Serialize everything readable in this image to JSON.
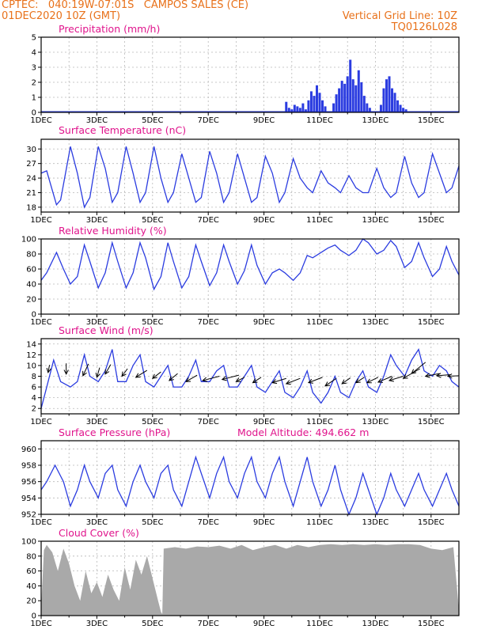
{
  "header": {
    "line1": "CPTEC:   040:19W-07:01S   CAMPOS SALES (CE)",
    "line2": "01DEC2020 10Z (GMT)",
    "grid_note": "Vertical Grid Line: 10Z",
    "code": "TQ0126L028"
  },
  "colors": {
    "header": "#e8711a",
    "title": "#e0148c",
    "line": "#2b3ce0",
    "cloud": "#a9a9a9",
    "wind": "#000000"
  },
  "x_ticks": [
    "1DEC",
    "3DEC",
    "5DEC",
    "7DEC",
    "9DEC",
    "11DEC",
    "13DEC",
    "15DEC"
  ],
  "chart_data": [
    {
      "type": "bar",
      "title": "Precipitation (mm/h)",
      "x_range": [
        0,
        15.0
      ],
      "ylim": [
        0,
        5
      ],
      "yticks": [
        0,
        1,
        2,
        3,
        4,
        5
      ],
      "x_unit_note": "days since 1DEC 00Z",
      "bars": [
        [
          8.8,
          0.7
        ],
        [
          8.9,
          0.3
        ],
        [
          9.0,
          0.2
        ],
        [
          9.1,
          0.5
        ],
        [
          9.2,
          0.4
        ],
        [
          9.3,
          0.3
        ],
        [
          9.4,
          0.6
        ],
        [
          9.5,
          0.2
        ],
        [
          9.6,
          0.8
        ],
        [
          9.7,
          1.4
        ],
        [
          9.8,
          1.1
        ],
        [
          9.9,
          1.8
        ],
        [
          10.0,
          1.3
        ],
        [
          10.1,
          0.8
        ],
        [
          10.2,
          0.4
        ],
        [
          10.5,
          0.6
        ],
        [
          10.6,
          1.2
        ],
        [
          10.7,
          1.6
        ],
        [
          10.8,
          2.1
        ],
        [
          10.9,
          1.9
        ],
        [
          11.0,
          2.4
        ],
        [
          11.1,
          3.5
        ],
        [
          11.2,
          2.2
        ],
        [
          11.3,
          1.8
        ],
        [
          11.4,
          2.8
        ],
        [
          11.5,
          2.0
        ],
        [
          11.6,
          1.1
        ],
        [
          11.7,
          0.6
        ],
        [
          11.8,
          0.3
        ],
        [
          12.2,
          0.5
        ],
        [
          12.3,
          1.6
        ],
        [
          12.4,
          2.2
        ],
        [
          12.5,
          2.4
        ],
        [
          12.6,
          1.6
        ],
        [
          12.7,
          1.3
        ],
        [
          12.8,
          0.8
        ],
        [
          12.9,
          0.5
        ],
        [
          13.0,
          0.3
        ],
        [
          13.1,
          0.2
        ]
      ]
    },
    {
      "type": "line",
      "title": "Surface Temperature (nC)",
      "ylim": [
        17,
        32
      ],
      "yticks": [
        18,
        21,
        24,
        27,
        30
      ],
      "x": [
        0,
        0.2,
        0.55,
        0.7,
        1.05,
        1.3,
        1.55,
        1.75,
        2.05,
        2.3,
        2.55,
        2.75,
        3.05,
        3.3,
        3.55,
        3.75,
        4.05,
        4.3,
        4.55,
        4.75,
        5.05,
        5.3,
        5.55,
        5.75,
        6.05,
        6.3,
        6.55,
        6.75,
        7.05,
        7.3,
        7.55,
        7.75,
        8.05,
        8.3,
        8.55,
        8.75,
        9.05,
        9.3,
        9.55,
        9.75,
        10.05,
        10.3,
        10.55,
        10.75,
        11.05,
        11.3,
        11.55,
        11.75,
        12.05,
        12.3,
        12.55,
        12.75,
        13.05,
        13.3,
        13.55,
        13.75,
        14.05,
        14.3,
        14.55,
        14.75,
        15.0
      ],
      "values": [
        25,
        25.5,
        18.5,
        19.5,
        30.5,
        25,
        18,
        20,
        30.5,
        26,
        19,
        21,
        30.5,
        25,
        19,
        21,
        30.5,
        24,
        19,
        21,
        29,
        24,
        19,
        20,
        29.5,
        25,
        19,
        21,
        29,
        24,
        19,
        20,
        28.5,
        25,
        19,
        21,
        28,
        24,
        22,
        21,
        25.5,
        23,
        22,
        21,
        24.5,
        22,
        21,
        21,
        26,
        22,
        20,
        21,
        28.5,
        23,
        20,
        21,
        29,
        25,
        21,
        22,
        26.5
      ]
    },
    {
      "type": "line",
      "title": "Relative Humidity (%)",
      "ylim": [
        0,
        100
      ],
      "yticks": [
        0,
        20,
        40,
        60,
        80,
        100
      ],
      "x": [
        0,
        0.2,
        0.55,
        0.8,
        1.05,
        1.3,
        1.55,
        1.75,
        2.05,
        2.3,
        2.55,
        2.75,
        3.05,
        3.3,
        3.55,
        3.75,
        4.05,
        4.3,
        4.55,
        4.75,
        5.05,
        5.3,
        5.55,
        5.75,
        6.05,
        6.3,
        6.55,
        6.75,
        7.05,
        7.3,
        7.55,
        7.75,
        8.05,
        8.3,
        8.55,
        8.75,
        9.05,
        9.3,
        9.55,
        9.75,
        10.05,
        10.3,
        10.55,
        10.75,
        11.05,
        11.3,
        11.55,
        11.75,
        12.05,
        12.3,
        12.55,
        12.75,
        13.05,
        13.3,
        13.55,
        13.75,
        14.05,
        14.3,
        14.55,
        14.75,
        15.0
      ],
      "values": [
        45,
        55,
        82,
        60,
        40,
        50,
        92,
        70,
        35,
        55,
        95,
        70,
        35,
        55,
        95,
        75,
        33,
        50,
        95,
        70,
        35,
        50,
        92,
        70,
        38,
        55,
        92,
        70,
        40,
        58,
        92,
        65,
        40,
        55,
        60,
        55,
        45,
        55,
        78,
        75,
        82,
        88,
        92,
        85,
        78,
        85,
        100,
        95,
        80,
        85,
        98,
        90,
        62,
        70,
        95,
        75,
        50,
        60,
        90,
        70,
        52
      ]
    },
    {
      "type": "line",
      "title": "Surface Wind (m/s)",
      "ylim": [
        1,
        15
      ],
      "yticks": [
        2,
        4,
        6,
        8,
        10,
        12,
        14
      ],
      "x": [
        0,
        0.15,
        0.45,
        0.7,
        1.05,
        1.3,
        1.55,
        1.75,
        2.05,
        2.3,
        2.55,
        2.75,
        3.05,
        3.3,
        3.55,
        3.75,
        4.05,
        4.3,
        4.55,
        4.75,
        5.05,
        5.3,
        5.55,
        5.75,
        6.05,
        6.3,
        6.55,
        6.75,
        7.05,
        7.3,
        7.55,
        7.75,
        8.05,
        8.3,
        8.55,
        8.75,
        9.05,
        9.3,
        9.55,
        9.75,
        10.05,
        10.3,
        10.55,
        10.75,
        11.05,
        11.3,
        11.55,
        11.75,
        12.05,
        12.3,
        12.55,
        12.75,
        13.05,
        13.3,
        13.55,
        13.75,
        14.05,
        14.3,
        14.55,
        14.75,
        15.0
      ],
      "values": [
        2,
        5,
        11,
        7,
        6,
        7,
        12,
        8,
        7,
        9,
        13,
        7,
        7,
        10,
        12,
        7,
        6,
        8,
        10,
        6,
        6,
        8,
        11,
        7,
        7,
        9,
        10,
        6,
        6,
        8,
        10,
        6,
        5,
        7,
        9,
        5,
        4,
        6,
        9,
        5,
        3,
        5,
        8,
        5,
        4,
        7,
        9,
        6,
        5,
        8,
        12,
        10,
        8,
        11,
        13,
        9,
        8,
        10,
        9,
        7,
        6
      ],
      "vectors": [
        [
          0.25,
          8.7,
          0.3,
          10.1
        ],
        [
          0.9,
          8.4,
          0.9,
          10.4
        ],
        [
          1.5,
          8.1,
          1.7,
          10.3
        ],
        [
          2.0,
          7.8,
          2.1,
          9.6
        ],
        [
          2.3,
          8.4,
          2.5,
          10.2
        ],
        [
          2.9,
          8.0,
          3.1,
          9.4
        ],
        [
          3.4,
          7.8,
          3.8,
          9.1
        ],
        [
          4.0,
          7.6,
          4.3,
          8.8
        ],
        [
          4.6,
          7.2,
          4.9,
          8.5
        ],
        [
          5.2,
          7.0,
          5.6,
          8.2
        ],
        [
          5.8,
          7.2,
          6.4,
          8.0
        ],
        [
          6.5,
          7.4,
          7.1,
          8.2
        ],
        [
          7.0,
          7.0,
          7.3,
          7.8
        ],
        [
          7.6,
          6.8,
          7.9,
          7.8
        ],
        [
          8.3,
          6.8,
          8.8,
          7.6
        ],
        [
          8.8,
          6.6,
          9.3,
          7.6
        ],
        [
          9.6,
          6.8,
          10.1,
          7.8
        ],
        [
          10.2,
          6.2,
          10.6,
          7.6
        ],
        [
          10.8,
          6.6,
          11.1,
          7.7
        ],
        [
          11.3,
          6.8,
          11.6,
          7.8
        ],
        [
          11.7,
          6.8,
          12.1,
          7.8
        ],
        [
          12.1,
          6.9,
          12.6,
          8.0
        ],
        [
          12.5,
          7.2,
          13.0,
          8.0
        ],
        [
          13.0,
          7.6,
          13.6,
          9.4
        ],
        [
          13.3,
          8.5,
          13.8,
          10.6
        ],
        [
          13.8,
          8.0,
          14.3,
          8.5
        ],
        [
          14.2,
          8.1,
          14.7,
          8.3
        ],
        [
          14.6,
          8.0,
          15.0,
          8.1
        ]
      ]
    },
    {
      "type": "line",
      "title": "Surface Pressure (hPa)",
      "annotation": "Model Altitude: 494.662  m",
      "ylim": [
        952,
        961
      ],
      "yticks": [
        952,
        954,
        956,
        958,
        960
      ],
      "x": [
        0,
        0.2,
        0.5,
        0.8,
        1.05,
        1.3,
        1.55,
        1.75,
        2.05,
        2.3,
        2.55,
        2.75,
        3.05,
        3.3,
        3.55,
        3.75,
        4.05,
        4.3,
        4.55,
        4.75,
        5.05,
        5.3,
        5.55,
        5.75,
        6.05,
        6.3,
        6.55,
        6.75,
        7.05,
        7.3,
        7.55,
        7.75,
        8.05,
        8.3,
        8.55,
        8.75,
        9.05,
        9.3,
        9.55,
        9.75,
        10.05,
        10.3,
        10.55,
        10.75,
        11.05,
        11.3,
        11.55,
        11.75,
        12.05,
        12.3,
        12.55,
        12.75,
        13.05,
        13.3,
        13.55,
        13.75,
        14.05,
        14.3,
        14.55,
        14.75,
        15.0
      ],
      "values": [
        955,
        956,
        958,
        956,
        953,
        955,
        958,
        956,
        954,
        957,
        958,
        955,
        953,
        956,
        958,
        956,
        954,
        957,
        958,
        955,
        953,
        956,
        959,
        957,
        954,
        957,
        959,
        956,
        954,
        957,
        959,
        956,
        954,
        957,
        959,
        956,
        953,
        956,
        959,
        956,
        953,
        955,
        958,
        955,
        952,
        954,
        957,
        955,
        952,
        954,
        957,
        955,
        953,
        955,
        957,
        955,
        953,
        955,
        957,
        955,
        953
      ]
    },
    {
      "type": "area",
      "title": "Cloud Cover (%)",
      "ylim": [
        0,
        100
      ],
      "yticks": [
        0,
        20,
        40,
        60,
        80,
        100
      ],
      "x": [
        0,
        0.1,
        0.2,
        0.4,
        0.6,
        0.8,
        1.0,
        1.2,
        1.4,
        1.6,
        1.8,
        2.0,
        2.2,
        2.4,
        2.6,
        2.8,
        3.0,
        3.2,
        3.4,
        3.6,
        3.8,
        4.0,
        4.2,
        4.3,
        4.35,
        4.4,
        4.8,
        5.2,
        5.6,
        6.0,
        6.4,
        6.8,
        7.2,
        7.6,
        8.0,
        8.4,
        8.8,
        9.2,
        9.6,
        10.0,
        10.4,
        10.8,
        11.2,
        11.6,
        12.0,
        12.4,
        12.8,
        13.2,
        13.6,
        14.0,
        14.4,
        14.8,
        15.0
      ],
      "values": [
        10,
        88,
        95,
        85,
        60,
        90,
        70,
        40,
        20,
        60,
        30,
        45,
        25,
        55,
        35,
        20,
        65,
        35,
        75,
        55,
        80,
        50,
        20,
        5,
        2,
        90,
        92,
        90,
        93,
        92,
        94,
        90,
        95,
        88,
        92,
        95,
        90,
        95,
        92,
        95,
        96,
        95,
        96,
        95,
        96,
        95,
        96,
        96,
        95,
        90,
        88,
        92,
        8
      ]
    }
  ]
}
